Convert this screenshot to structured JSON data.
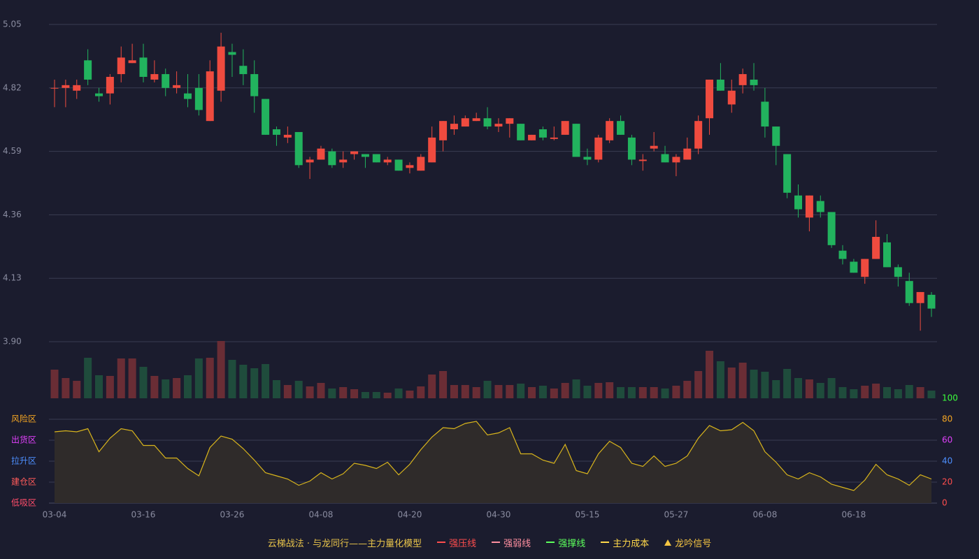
{
  "chart_data": {
    "type": "candlestick",
    "categories": [
      "03-04",
      null,
      null,
      null,
      null,
      null,
      null,
      null,
      "03-16",
      null,
      null,
      null,
      null,
      null,
      null,
      null,
      "03-26",
      null,
      null,
      null,
      null,
      null,
      null,
      null,
      "04-08",
      null,
      null,
      null,
      null,
      null,
      null,
      null,
      "04-20",
      null,
      null,
      null,
      null,
      null,
      null,
      null,
      "04-30",
      null,
      null,
      null,
      null,
      null,
      null,
      null,
      "05-15",
      null,
      null,
      null,
      null,
      null,
      null,
      null,
      "05-27",
      null,
      null,
      null,
      null,
      null,
      null,
      null,
      "06-08",
      null,
      null,
      null,
      null,
      null,
      null,
      null,
      "06-18",
      null,
      null,
      null,
      null,
      null,
      null,
      null
    ],
    "open": [
      4.82,
      4.82,
      4.81,
      4.92,
      4.8,
      4.8,
      4.87,
      4.91,
      4.93,
      4.85,
      4.87,
      4.82,
      4.8,
      4.82,
      4.7,
      4.81,
      4.95,
      4.9,
      4.87,
      4.78,
      4.67,
      4.64,
      4.66,
      4.55,
      4.56,
      4.59,
      4.55,
      4.58,
      4.58,
      4.58,
      4.55,
      4.56,
      4.53,
      4.52,
      4.55,
      4.63,
      4.67,
      4.68,
      4.7,
      4.71,
      4.68,
      4.69,
      4.69,
      4.63,
      4.67,
      4.635,
      4.65,
      4.69,
      4.57,
      4.56,
      4.63,
      4.7,
      4.64,
      4.555,
      4.6,
      4.58,
      4.55,
      4.56,
      4.6,
      4.71,
      4.85,
      4.76,
      4.83,
      4.85,
      4.77,
      4.68,
      4.58,
      4.43,
      4.35,
      4.41,
      4.37,
      4.23,
      4.19,
      4.135,
      4.2,
      4.26,
      4.17,
      4.12,
      4.04,
      4.07
    ],
    "close": [
      4.82,
      4.83,
      4.83,
      4.85,
      4.79,
      4.86,
      4.93,
      4.92,
      4.86,
      4.87,
      4.82,
      4.83,
      4.78,
      4.74,
      4.88,
      4.97,
      4.94,
      4.87,
      4.79,
      4.65,
      4.65,
      4.65,
      4.54,
      4.56,
      4.6,
      4.54,
      4.56,
      4.59,
      4.57,
      4.55,
      4.56,
      4.52,
      4.54,
      4.57,
      4.64,
      4.7,
      4.69,
      4.71,
      4.71,
      4.68,
      4.69,
      4.71,
      4.63,
      4.65,
      4.64,
      4.64,
      4.7,
      4.57,
      4.56,
      4.64,
      4.7,
      4.65,
      4.56,
      4.56,
      4.61,
      4.55,
      4.57,
      4.6,
      4.7,
      4.85,
      4.81,
      4.81,
      4.87,
      4.83,
      4.68,
      4.61,
      4.44,
      4.38,
      4.43,
      4.37,
      4.25,
      4.2,
      4.15,
      4.2,
      4.28,
      4.17,
      4.135,
      4.04,
      4.08,
      4.02
    ],
    "high": [
      4.85,
      4.85,
      4.85,
      4.96,
      4.82,
      4.87,
      4.97,
      4.98,
      4.98,
      4.92,
      4.89,
      4.88,
      4.87,
      4.87,
      4.92,
      5.02,
      4.98,
      4.96,
      4.92,
      4.78,
      4.68,
      4.68,
      4.66,
      4.57,
      4.61,
      4.6,
      4.59,
      4.59,
      4.58,
      4.58,
      4.57,
      4.56,
      4.55,
      4.58,
      4.68,
      4.7,
      4.72,
      4.72,
      4.73,
      4.75,
      4.71,
      4.71,
      4.69,
      4.65,
      4.68,
      4.68,
      4.7,
      4.69,
      4.6,
      4.65,
      4.71,
      4.72,
      4.65,
      4.58,
      4.66,
      4.61,
      4.58,
      4.64,
      4.72,
      4.85,
      4.91,
      4.85,
      4.89,
      4.91,
      4.82,
      4.68,
      4.58,
      4.47,
      4.43,
      4.43,
      4.37,
      4.25,
      4.2,
      4.2,
      4.34,
      4.29,
      4.18,
      4.15,
      4.08,
      4.08
    ],
    "low": [
      4.75,
      4.75,
      4.78,
      4.83,
      4.77,
      4.76,
      4.84,
      4.91,
      4.84,
      4.84,
      4.79,
      4.8,
      4.75,
      4.72,
      4.7,
      4.77,
      4.86,
      4.83,
      4.73,
      4.65,
      4.61,
      4.62,
      4.53,
      4.49,
      4.56,
      4.53,
      4.53,
      4.56,
      4.53,
      4.55,
      4.54,
      4.52,
      4.51,
      4.52,
      4.55,
      4.59,
      4.65,
      4.68,
      4.7,
      4.67,
      4.66,
      4.64,
      4.63,
      4.63,
      4.63,
      4.63,
      4.65,
      4.57,
      4.54,
      4.55,
      4.62,
      4.65,
      4.54,
      4.52,
      4.59,
      4.55,
      4.5,
      4.56,
      4.58,
      4.65,
      4.81,
      4.73,
      4.8,
      4.81,
      4.64,
      4.54,
      4.42,
      4.35,
      4.3,
      4.35,
      4.24,
      4.18,
      4.15,
      4.11,
      4.2,
      4.17,
      4.1,
      4.03,
      3.94,
      3.99
    ],
    "up_color": "#ef4b3f",
    "down_color": "#22b35e",
    "ylim": [
      3.9,
      5.05
    ],
    "yticks": [
      {
        "value": 3.9,
        "label": "3.90"
      },
      4.13,
      4.36,
      4.59,
      4.82,
      5.05
    ],
    "grid": true,
    "volume": [
      41,
      29,
      25,
      58,
      33,
      32,
      57,
      57,
      45,
      32,
      27,
      29,
      33,
      57,
      58,
      82,
      55,
      48,
      43,
      49,
      26,
      19,
      25,
      17,
      22,
      14,
      16,
      13,
      9,
      9,
      8,
      14,
      11,
      17,
      34,
      39,
      19,
      19,
      16,
      25,
      19,
      19,
      21,
      16,
      18,
      14,
      22,
      27,
      18,
      22,
      23,
      16,
      16,
      16,
      16,
      14,
      18,
      25,
      39,
      68,
      53,
      44,
      51,
      41,
      38,
      26,
      42,
      29,
      27,
      22,
      29,
      16,
      13,
      18,
      21,
      16,
      13,
      19,
      16,
      11
    ],
    "volume_up_color": "#6a2d35",
    "volume_down_color": "#1f4c3c",
    "indicator": {
      "type": "area",
      "values": [
        68,
        69,
        68,
        71,
        49,
        62,
        71,
        69,
        55,
        55,
        43,
        43,
        33,
        26,
        53,
        64,
        61,
        52,
        41,
        29,
        26,
        23,
        17,
        21,
        29,
        23,
        28,
        38,
        36,
        33,
        39,
        27,
        37,
        51,
        63,
        72,
        71,
        76,
        78,
        65,
        67,
        72,
        47,
        47,
        41,
        38,
        56,
        31,
        28,
        47,
        59,
        53,
        38,
        35,
        45,
        35,
        38,
        45,
        62,
        74,
        69,
        70,
        77,
        69,
        49,
        39,
        27,
        23,
        29,
        25,
        18,
        15,
        12,
        22,
        37,
        27,
        23,
        17,
        27,
        23
      ],
      "color": "#d9b51c",
      "fill": "#2f2b2a",
      "ylim": [
        0,
        100
      ],
      "yticks": [
        0,
        20,
        40,
        60,
        80,
        100
      ],
      "ytick_colors": [
        "#ff4d4d",
        "#ff4d4d",
        "#4d8fff",
        "#e040fb",
        "#f5a623",
        "#3cff3c"
      ],
      "zone_ticks": [
        {
          "value": 80,
          "label": "风险区"
        },
        {
          "value": 60,
          "label": "出货区"
        },
        {
          "value": 40,
          "label": "拉升区"
        },
        {
          "value": 20,
          "label": "建仓区"
        },
        {
          "value": 0,
          "label": "低吸区"
        }
      ],
      "zone_colors": [
        "#f5a623",
        "#e040fb",
        "#4d8fff",
        "#ff5a5a",
        "#ff4d6a"
      ]
    },
    "legend_title": {
      "label": "云梯战法 · 与龙同行——主力量化模型",
      "color": "#e8c34a"
    },
    "legend": [
      {
        "label": "强压线",
        "color": "#ff4d4d",
        "marker": "line"
      },
      {
        "label": "强弱线",
        "color": "#ff8fa0",
        "marker": "dashed"
      },
      {
        "label": "强撑线",
        "color": "#5cff5c",
        "marker": "line"
      },
      {
        "label": "主力成本",
        "color": "#ffd84a",
        "marker": "dashed"
      },
      {
        "label": "龙吟信号",
        "color": "#f5c542",
        "marker": "triangle"
      }
    ]
  }
}
